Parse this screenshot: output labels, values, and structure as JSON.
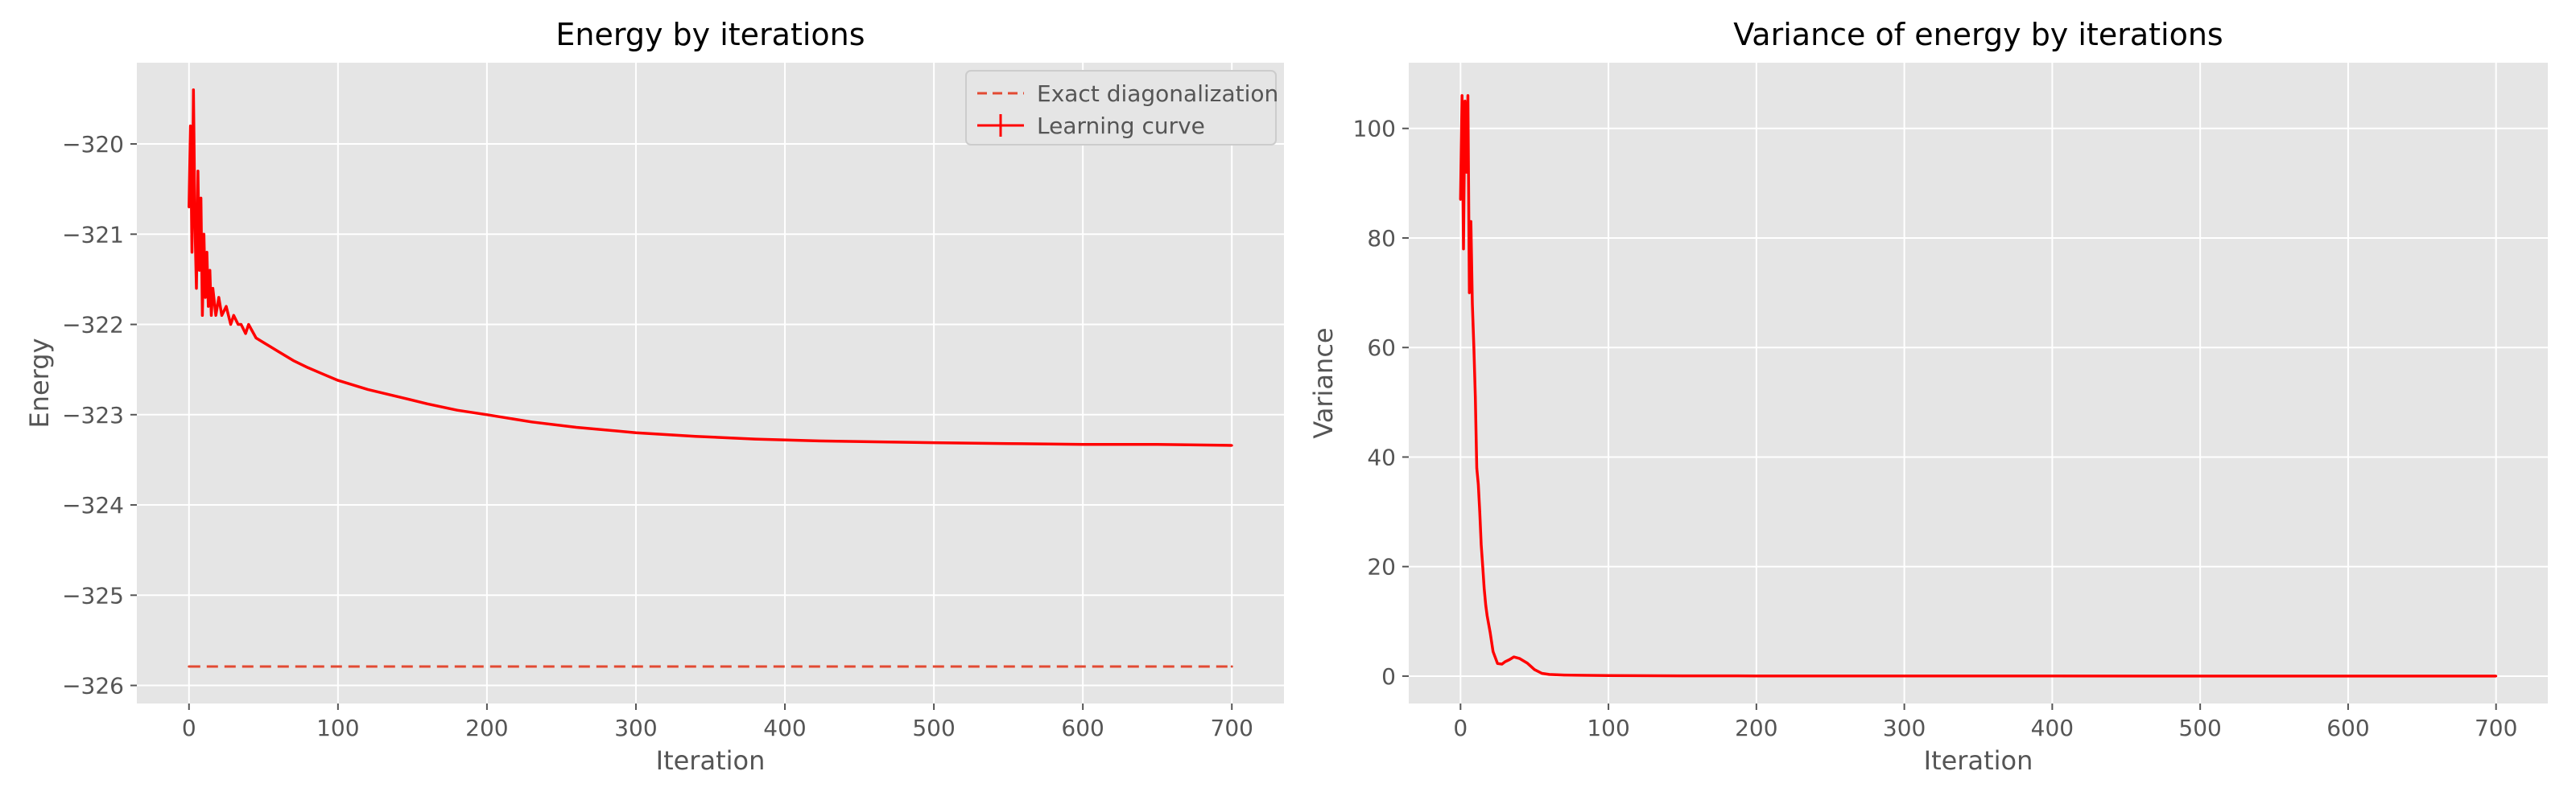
{
  "figure": {
    "background": "#ffffff"
  },
  "style": {
    "axes_bg": "#e5e5e5",
    "grid_color": "#ffffff",
    "text_color": "#555555",
    "title_color": "#000000",
    "line_color": "#ff0000",
    "dashed_color": "#e24a33"
  },
  "chart_data": [
    {
      "type": "line",
      "title": "Energy by iterations",
      "xlabel": "Iteration",
      "ylabel": "Energy",
      "xlim": [
        -35,
        735
      ],
      "ylim": [
        -326.2,
        -319.1
      ],
      "xticks": [
        0,
        100,
        200,
        300,
        400,
        500,
        600,
        700
      ],
      "xtick_labels": [
        "0",
        "100",
        "200",
        "300",
        "400",
        "500",
        "600",
        "700"
      ],
      "yticks": [
        -320,
        -321,
        -322,
        -323,
        -324,
        -325,
        -326
      ],
      "ytick_labels": [
        "−320",
        "−321",
        "−322",
        "−323",
        "−324",
        "−325",
        "−326"
      ],
      "grid": true,
      "legend": {
        "position": "upper right",
        "entries": [
          "Exact diagonalization",
          "Learning curve"
        ]
      },
      "series": [
        {
          "name": "Exact diagonalization",
          "style": "dashed",
          "color": "#e24a33",
          "x": [
            0,
            700
          ],
          "y": [
            -325.79,
            -325.79
          ]
        },
        {
          "name": "Learning curve",
          "style": "solid-errorbar",
          "color": "#ff0000",
          "x": [
            0,
            1,
            2,
            3,
            4,
            5,
            6,
            7,
            8,
            9,
            10,
            11,
            12,
            13,
            14,
            15,
            16,
            18,
            20,
            22,
            25,
            28,
            30,
            33,
            35,
            38,
            40,
            45,
            50,
            55,
            60,
            70,
            80,
            90,
            100,
            120,
            140,
            160,
            180,
            200,
            230,
            260,
            300,
            340,
            380,
            420,
            460,
            500,
            550,
            600,
            650,
            700
          ],
          "y": [
            -320.7,
            -319.8,
            -321.2,
            -319.4,
            -320.9,
            -321.6,
            -320.3,
            -321.4,
            -320.6,
            -321.9,
            -321.0,
            -321.7,
            -321.2,
            -321.8,
            -321.4,
            -321.9,
            -321.6,
            -321.9,
            -321.7,
            -321.9,
            -321.8,
            -322.0,
            -321.9,
            -322.0,
            -322.0,
            -322.1,
            -322.0,
            -322.15,
            -322.2,
            -322.25,
            -322.3,
            -322.4,
            -322.48,
            -322.55,
            -322.62,
            -322.72,
            -322.8,
            -322.88,
            -322.95,
            -323.0,
            -323.08,
            -323.14,
            -323.2,
            -323.24,
            -323.27,
            -323.29,
            -323.3,
            -323.31,
            -323.32,
            -323.33,
            -323.33,
            -323.34
          ]
        }
      ]
    },
    {
      "type": "line",
      "title": "Variance of energy by iterations",
      "xlabel": "Iteration",
      "ylabel": "Variance",
      "xlim": [
        -35,
        735
      ],
      "ylim": [
        -5,
        112
      ],
      "xticks": [
        0,
        100,
        200,
        300,
        400,
        500,
        600,
        700
      ],
      "xtick_labels": [
        "0",
        "100",
        "200",
        "300",
        "400",
        "500",
        "600",
        "700"
      ],
      "yticks": [
        0,
        20,
        40,
        60,
        80,
        100
      ],
      "ytick_labels": [
        "0",
        "20",
        "40",
        "60",
        "80",
        "100"
      ],
      "grid": true,
      "series": [
        {
          "color": "#ff0000",
          "style": "solid",
          "x": [
            0,
            1,
            2,
            3,
            4,
            5,
            6,
            7,
            8,
            9,
            10,
            11,
            12,
            13,
            14,
            15,
            16,
            17,
            18,
            20,
            22,
            25,
            28,
            30,
            33,
            36,
            40,
            45,
            50,
            55,
            60,
            70,
            80,
            100,
            150,
            200,
            300,
            400,
            500,
            600,
            700
          ],
          "y": [
            87,
            106,
            78,
            105,
            92,
            106,
            70,
            83,
            68,
            60,
            51,
            38,
            35,
            30,
            24,
            20,
            16,
            13,
            11,
            8,
            4.5,
            2.3,
            2.2,
            2.6,
            3.0,
            3.5,
            3.2,
            2.4,
            1.2,
            0.5,
            0.3,
            0.2,
            0.15,
            0.1,
            0.05,
            0.03,
            0.02,
            0.02,
            0.01,
            0.01,
            0.01
          ]
        }
      ]
    }
  ]
}
